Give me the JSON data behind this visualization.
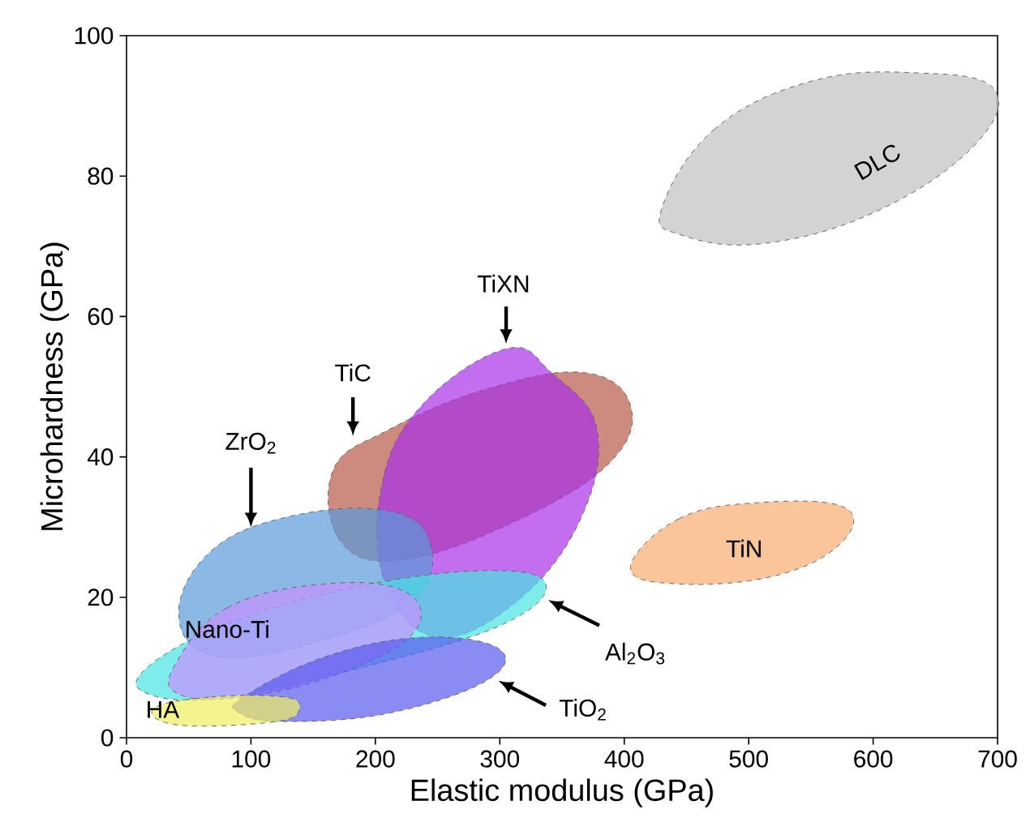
{
  "chart_data": {
    "type": "area",
    "xlabel": "Elastic modulus (GPa)",
    "ylabel": "Microhardness (GPa)",
    "xlim": [
      0,
      700
    ],
    "ylim": [
      0,
      100
    ],
    "xticks": [
      0,
      100,
      200,
      300,
      400,
      500,
      600,
      700
    ],
    "yticks": [
      0,
      20,
      40,
      60,
      80,
      100
    ],
    "grid": false,
    "legend": false,
    "line_style": "dashed",
    "marker": "none",
    "series": [
      {
        "name": "DLC",
        "color": "#c0c0c0",
        "x": [
          430,
          472,
          550,
          635,
          697,
          681,
          603,
          512,
          446
        ],
        "values": [
          75.3,
          86.6,
          93.5,
          94.7,
          92.4,
          84.3,
          75,
          70.4,
          71.6
        ]
      },
      {
        "name": "TiN",
        "color": "#f8ac70",
        "x": [
          405,
          444,
          509,
          577,
          574,
          522,
          444
        ],
        "values": [
          24.2,
          31.2,
          33.5,
          32.8,
          27.7,
          23.1,
          21.9
        ]
      },
      {
        "name": "TiC",
        "color": "#b85a48",
        "x": [
          166,
          211,
          290,
          368,
          405,
          389,
          317,
          225,
          173
        ],
        "values": [
          38.1,
          43.9,
          49.7,
          52,
          47.3,
          39.3,
          31.2,
          25.4,
          27.7
        ]
      },
      {
        "name": "TiXN",
        "color": "#a830e8",
        "x": [
          305,
          342,
          378,
          365,
          315,
          250,
          208,
          205,
          237
        ],
        "values": [
          55.4,
          51.9,
          44,
          31.2,
          19.6,
          14.3,
          21.9,
          35.8,
          47.3
        ]
      },
      {
        "name": "ZrO$_{2}$",
        "color": "#5a9ad8",
        "x": [
          42,
          68,
          133,
          211,
          244,
          231,
          159,
          74
        ],
        "values": [
          17.3,
          26.6,
          31.6,
          32.3,
          27.7,
          19.6,
          13.9,
          11.5
        ]
      },
      {
        "name": "Al$_{2}$O$_{3}$",
        "color": "#48e4e4",
        "x": [
          16,
          81,
          185,
          289,
          337,
          303,
          198,
          81,
          18
        ],
        "values": [
          9.9,
          16.2,
          21.5,
          23.8,
          21.9,
          16.2,
          10.4,
          5.8,
          6.2
        ]
      },
      {
        "name": "Nano-Ti",
        "color": "#c890ff",
        "x": [
          39,
          81,
          159,
          224,
          231,
          172,
          94,
          42
        ],
        "values": [
          10.4,
          18.5,
          21.9,
          20.8,
          15,
          9.2,
          5.8,
          6.2
        ]
      },
      {
        "name": "TiO$_{2}$",
        "color": "#5a5af0",
        "x": [
          94,
          159,
          237,
          299,
          289,
          211,
          127,
          91
        ],
        "values": [
          5.8,
          11.5,
          14.3,
          12.7,
          8.1,
          3.5,
          2.3,
          3.5
        ]
      },
      {
        "name": "HA",
        "color": "#f0f060",
        "x": [
          22,
          68,
          126,
          139,
          120,
          42
        ],
        "values": [
          4.2,
          5.8,
          5.8,
          4.2,
          2.3,
          1.8
        ]
      }
    ]
  }
}
